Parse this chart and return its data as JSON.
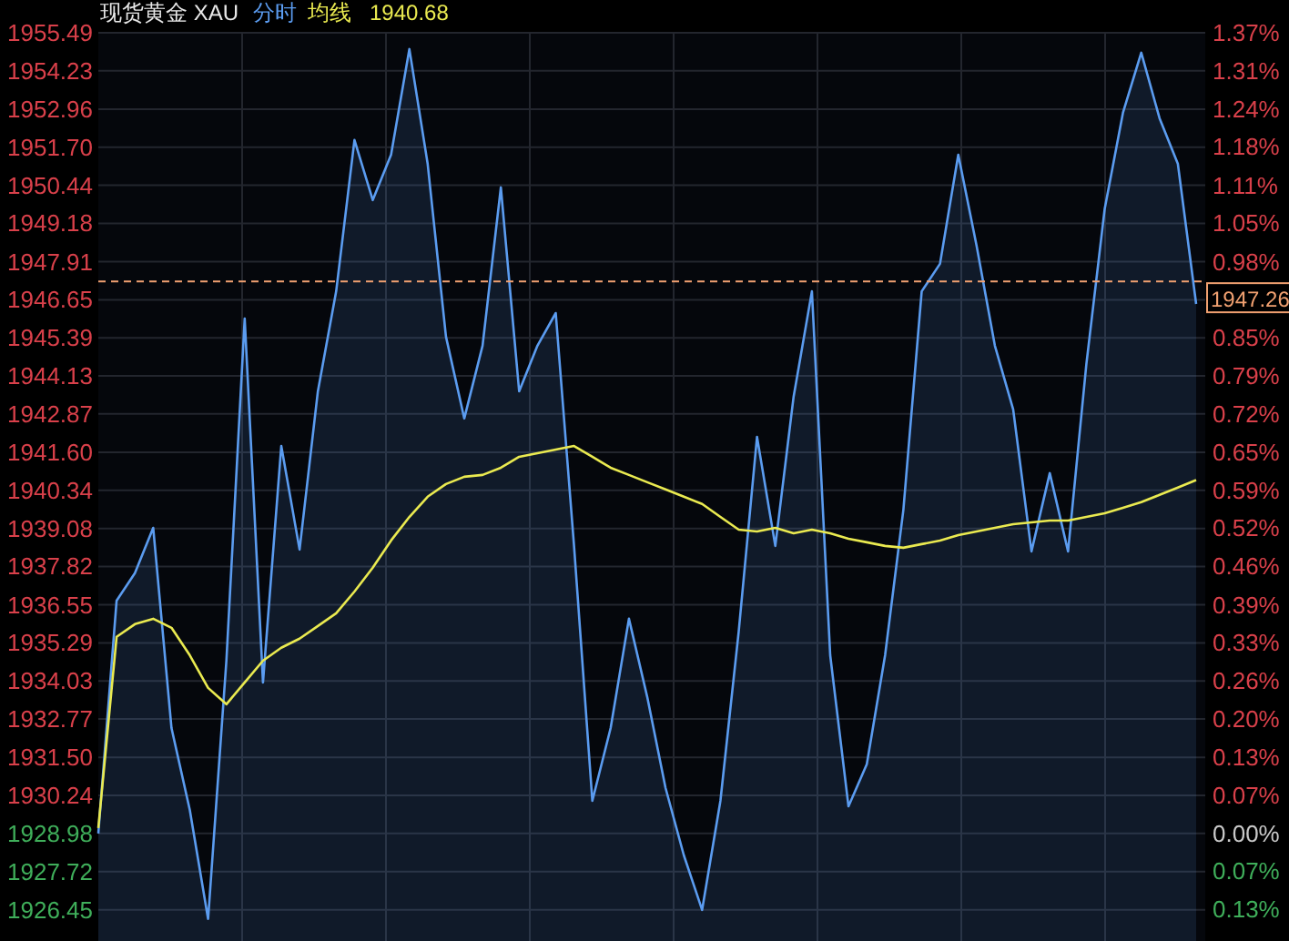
{
  "chart_data": {
    "type": "area",
    "title": "现货黄金 XAU",
    "categories": [
      null,
      null,
      null,
      null,
      null,
      null,
      null,
      null,
      null,
      null,
      null,
      null,
      null,
      null,
      null,
      null,
      null,
      null,
      null,
      null,
      null,
      null,
      null,
      null,
      null,
      null,
      null,
      null,
      null,
      null,
      null,
      null,
      null,
      null,
      null,
      null,
      null,
      null,
      null,
      null,
      null,
      null,
      null,
      null,
      null,
      null,
      null,
      null,
      null,
      null,
      null,
      null,
      null,
      null,
      null,
      null,
      null,
      null,
      null,
      null,
      null
    ],
    "series": [
      {
        "name": "分时",
        "color": "#5b9cf0",
        "values": [
          1928.98,
          1936.69,
          1937.6,
          1939.1,
          1932.47,
          1929.76,
          1926.15,
          1934.7,
          1946.03,
          1933.98,
          1941.81,
          1938.38,
          1943.62,
          1946.93,
          1951.94,
          1949.95,
          1951.45,
          1954.95,
          1951.15,
          1945.43,
          1942.72,
          1945.13,
          1950.37,
          1943.62,
          1945.13,
          1946.21,
          1938.5,
          1930.06,
          1932.47,
          1936.09,
          1933.5,
          1930.49,
          1928.26,
          1926.45,
          1930.06,
          1935.67,
          1942.11,
          1938.5,
          1943.44,
          1946.93,
          1934.88,
          1929.88,
          1931.27,
          1934.88,
          1939.7,
          1946.93,
          1947.84,
          1951.45,
          1948.44,
          1945.13,
          1943.02,
          1938.32,
          1940.91,
          1938.32,
          1944.52,
          1949.65,
          1952.84,
          1954.83,
          1952.66,
          1951.15,
          1946.51
        ]
      },
      {
        "name": "均线",
        "type": "line",
        "color": "#eaea50",
        "values": [
          1929.16,
          1935.49,
          1935.91,
          1936.09,
          1935.79,
          1934.88,
          1933.8,
          1933.26,
          1933.98,
          1934.7,
          1935.13,
          1935.43,
          1935.85,
          1936.27,
          1936.99,
          1937.78,
          1938.68,
          1939.46,
          1940.13,
          1940.55,
          1940.79,
          1940.85,
          1941.09,
          1941.45,
          1941.57,
          1941.69,
          1941.81,
          1941.45,
          1941.09,
          1940.85,
          1940.61,
          1940.37,
          1940.13,
          1939.89,
          1939.46,
          1939.04,
          1938.98,
          1939.1,
          1938.92,
          1939.04,
          1938.92,
          1938.74,
          1938.62,
          1938.5,
          1938.44,
          1938.56,
          1938.68,
          1938.86,
          1938.98,
          1939.1,
          1939.22,
          1939.28,
          1939.34,
          1939.34,
          1939.46,
          1939.58,
          1939.76,
          1939.95,
          1940.19,
          1940.43,
          1940.68
        ]
      }
    ],
    "annotations": [
      "1940.68"
    ],
    "ylim": [
      1925.42,
      1955.49
    ],
    "yticks": [
      1926.45,
      1927.72,
      1928.98,
      1930.24,
      {
        "value": 1931.5,
        "label": "1931.50"
      },
      1932.77,
      1934.03,
      1935.29,
      1936.55,
      1937.82,
      1939.08,
      1940.34,
      {
        "value": 1941.6,
        "label": "1941.60"
      },
      1942.87,
      1944.13,
      1945.39,
      1946.65,
      1947.91,
      1949.18,
      1950.44,
      {
        "value": 1951.7,
        "label": "1951.70"
      },
      1952.96,
      1954.23,
      1955.49
    ],
    "y2lim": [
      -0.185,
      1.374
    ],
    "y2ticks": [
      {
        "value": -0.131,
        "label": "0.13%"
      },
      {
        "value": -0.065,
        "label": "0.07%"
      },
      {
        "value": 0,
        "label": "0.00%"
      },
      {
        "value": 0.065,
        "label": "0.07%"
      },
      {
        "value": 0.131,
        "label": "0.13%"
      },
      {
        "value": 0.196,
        "label": "0.20%"
      },
      {
        "value": 0.262,
        "label": "0.26%"
      },
      {
        "value": 0.327,
        "label": "0.33%"
      },
      {
        "value": 0.392,
        "label": "0.39%"
      },
      {
        "value": 0.458,
        "label": "0.46%"
      },
      {
        "value": 0.524,
        "label": "0.52%"
      },
      {
        "value": 0.589,
        "label": "0.59%"
      },
      {
        "value": 0.654,
        "label": "0.65%"
      },
      {
        "value": 0.72,
        "label": "0.72%"
      },
      {
        "value": 0.785,
        "label": "0.79%"
      },
      {
        "value": 0.851,
        "label": "0.85%"
      },
      {
        "value": 0.916,
        "label": null
      },
      {
        "value": 0.981,
        "label": "0.98%"
      },
      {
        "value": 1.047,
        "label": "1.05%"
      },
      {
        "value": 1.112,
        "label": "1.11%"
      },
      {
        "value": 1.178,
        "label": "1.18%"
      },
      {
        "value": 1.243,
        "label": "1.24%"
      },
      {
        "value": 1.309,
        "label": "1.31%"
      },
      {
        "value": 1.374,
        "label": "1.37%"
      }
    ],
    "ref_lines": [
      {
        "axis": "y",
        "value": 1947.26,
        "label": "1947.26",
        "color": "#f0a070",
        "line_style": "dashed"
      }
    ],
    "grid": true,
    "legend": "top"
  }
}
